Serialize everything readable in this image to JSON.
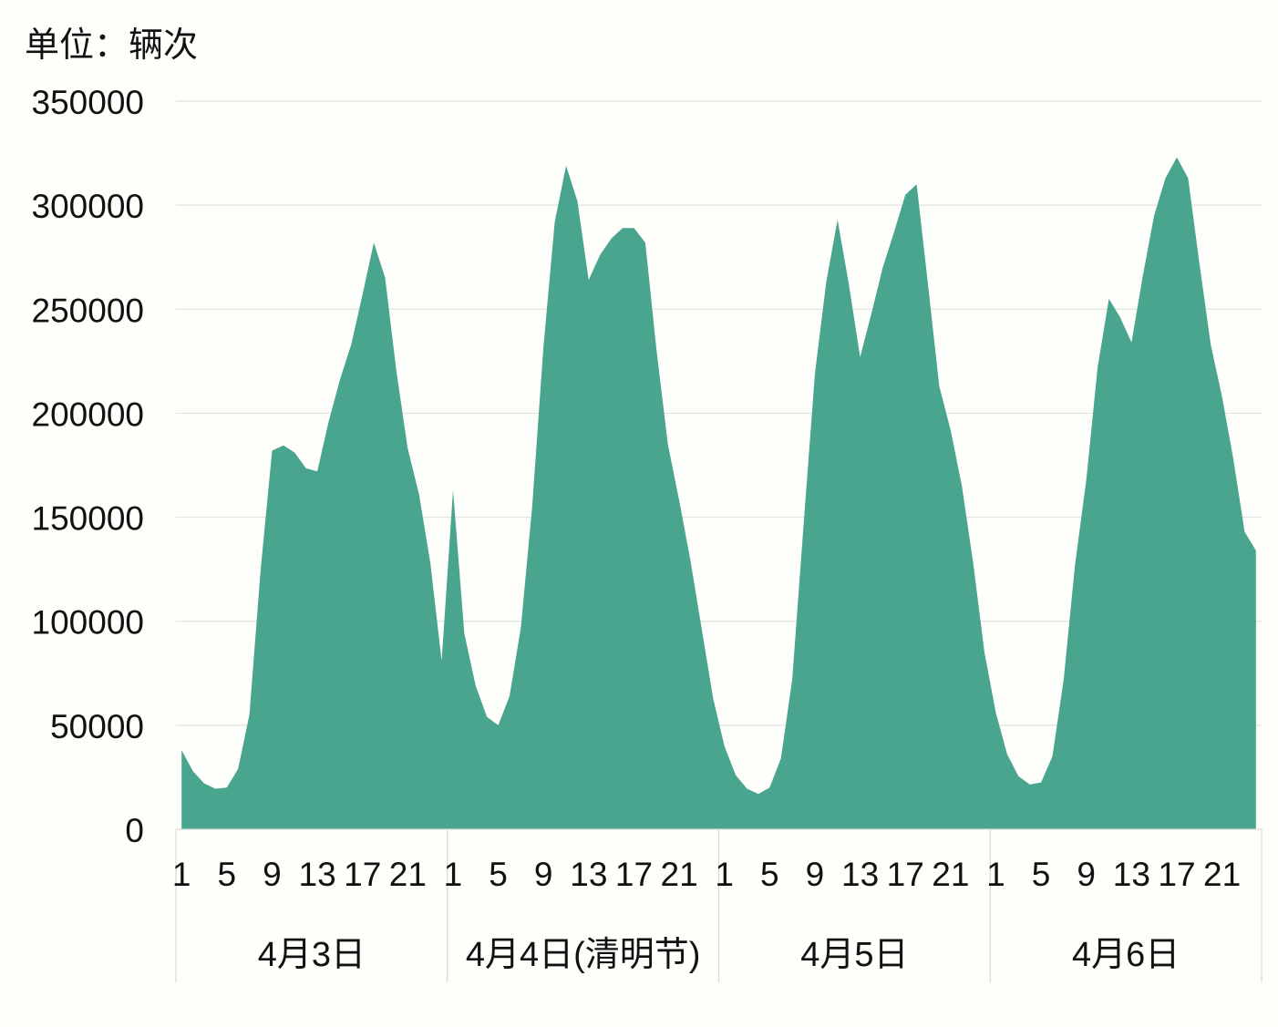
{
  "chart_data": {
    "type": "area",
    "unit_label": "单位：辆次",
    "color": "#49a58e",
    "ylim": [
      0,
      350000
    ],
    "y_ticks": [
      0,
      50000,
      100000,
      150000,
      200000,
      250000,
      300000,
      350000
    ],
    "y_tick_labels": [
      "0",
      "50000",
      "100000",
      "150000",
      "200000",
      "250000",
      "300000",
      "350000"
    ],
    "grid": true,
    "x_tick_labels": [
      "1",
      "5",
      "9",
      "13",
      "17",
      "21"
    ],
    "hours_per_group": 24,
    "groups": [
      {
        "label": "4月3日",
        "values": [
          38000,
          28000,
          22000,
          19500,
          20000,
          29000,
          55000,
          125000,
          182000,
          184500,
          181000,
          173500,
          172000,
          196000,
          216000,
          233000,
          257000,
          282000,
          265000,
          220000,
          183000,
          161000,
          128000,
          81000
        ]
      },
      {
        "label": "4月4日(清明节)",
        "values": [
          163000,
          94000,
          69000,
          54000,
          50000,
          64000,
          97000,
          155000,
          232000,
          292000,
          319000,
          302000,
          264000,
          276000,
          284000,
          289000,
          289000,
          282000,
          230000,
          185000,
          158000,
          129000,
          96000,
          63000
        ]
      },
      {
        "label": "4月5日",
        "values": [
          40000,
          26000,
          19500,
          17000,
          20000,
          34000,
          72000,
          146000,
          219000,
          263000,
          293000,
          262000,
          227000,
          248000,
          270000,
          287000,
          305000,
          310000,
          262000,
          213000,
          192000,
          165000,
          128000,
          85000
        ]
      },
      {
        "label": "4月6日",
        "values": [
          56000,
          36000,
          25500,
          21500,
          22500,
          35000,
          72000,
          127000,
          168000,
          222000,
          255000,
          246000,
          234000,
          266000,
          295000,
          313000,
          323000,
          313000,
          272000,
          233000,
          208000,
          178000,
          143000,
          134000
        ]
      }
    ]
  }
}
